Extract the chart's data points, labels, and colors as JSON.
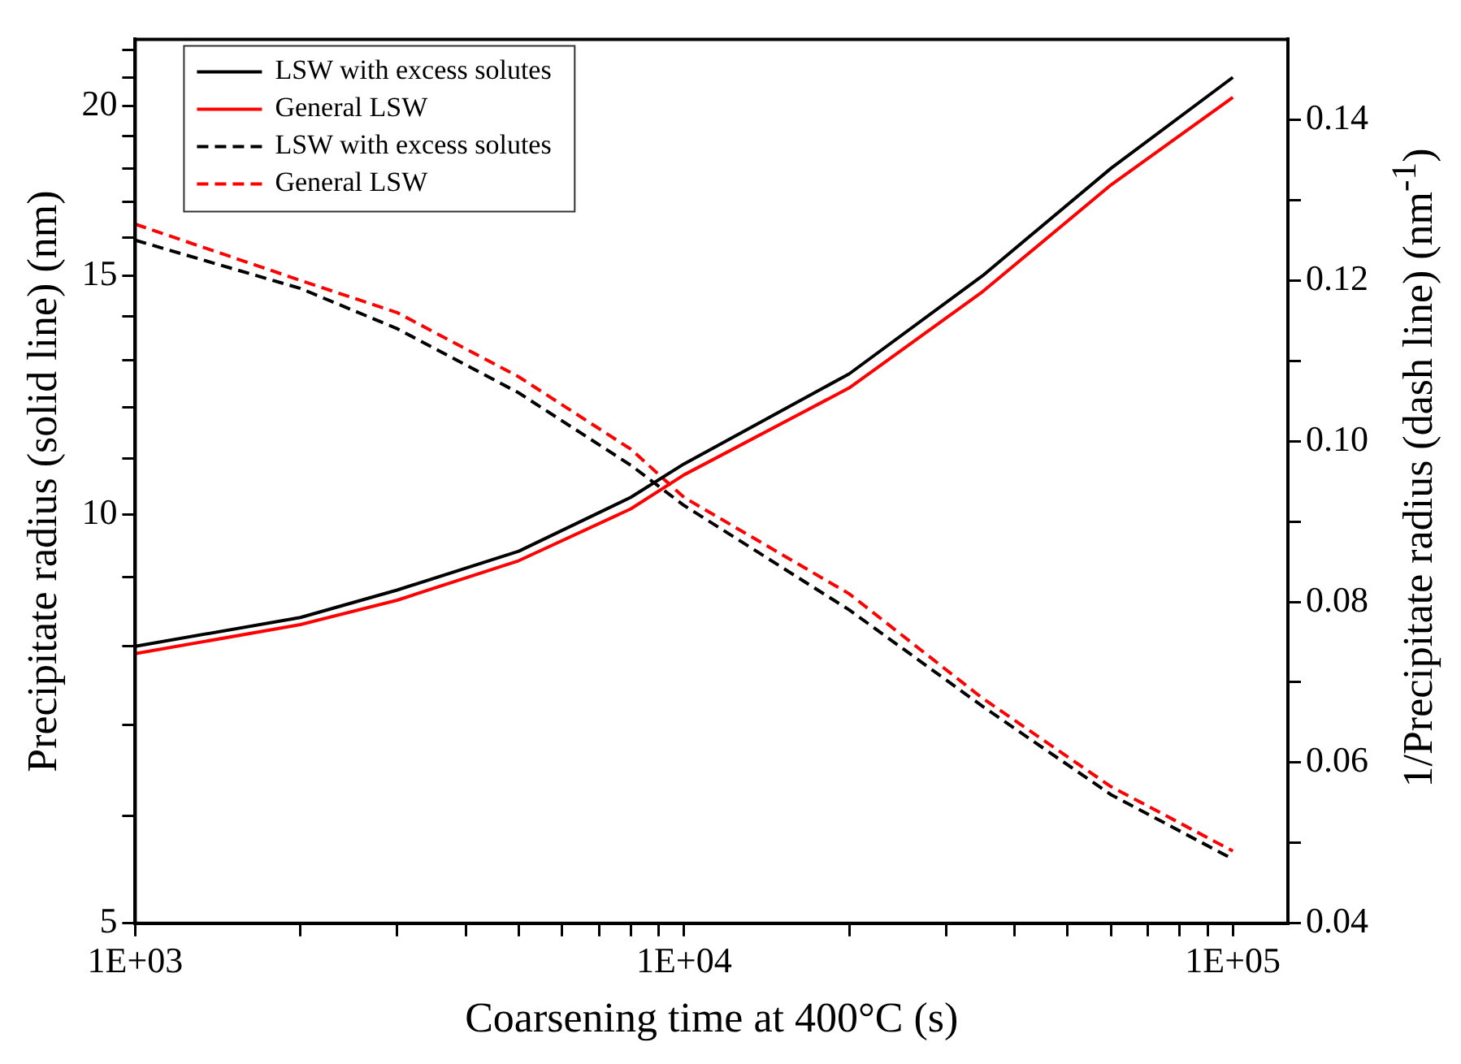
{
  "chart_data": {
    "type": "line",
    "xlabel": "Coarsening time at 400°C (s)",
    "ylabel": "Precipitate radius (solid line) (nm)",
    "y2label": "1/Precipitate radius (dash line) (nm$^{-1}$)",
    "x": [
      1000,
      2000,
      3000,
      5000,
      8000,
      10000,
      20000,
      35000,
      60000,
      100000
    ],
    "series": [
      {
        "name": "LSW with excess solutes",
        "color": "#000000",
        "line_style": "solid",
        "values": [
          8.0,
          8.4,
          8.8,
          9.4,
          10.3,
          10.9,
          12.7,
          15.0,
          18.0,
          21.0
        ]
      },
      {
        "name": "General LSW",
        "color": "#ff0000",
        "line_style": "solid",
        "values": [
          7.9,
          8.3,
          8.65,
          9.25,
          10.1,
          10.7,
          12.4,
          14.6,
          17.5,
          20.3
        ]
      },
      {
        "name": "LSW with excess solutes",
        "color": "#000000",
        "line_style": "dashed",
        "axis": "y2",
        "values": [
          0.125,
          0.119,
          0.114,
          0.106,
          0.097,
          0.092,
          0.079,
          0.067,
          0.056,
          0.048
        ]
      },
      {
        "name": "General LSW",
        "color": "#ff0000",
        "line_style": "dashed",
        "axis": "y2",
        "values": [
          0.127,
          0.12,
          0.116,
          0.108,
          0.099,
          0.093,
          0.081,
          0.068,
          0.057,
          0.049
        ]
      }
    ],
    "xlim": [
      1000,
      126000
    ],
    "ylim": [
      5,
      22.4
    ],
    "y2lim": [
      0.04,
      0.15
    ],
    "xticks": [
      {
        "value": 1000,
        "label": "1E+03"
      },
      {
        "value": 2000,
        "label": null
      },
      {
        "value": 3000,
        "label": null
      },
      {
        "value": 4000,
        "label": null
      },
      {
        "value": 5000,
        "label": null
      },
      {
        "value": 6000,
        "label": null
      },
      {
        "value": 7000,
        "label": null
      },
      {
        "value": 8000,
        "label": null
      },
      {
        "value": 9000,
        "label": null
      },
      {
        "value": 10000,
        "label": "1E+04"
      },
      {
        "value": 20000,
        "label": null
      },
      {
        "value": 30000,
        "label": null
      },
      {
        "value": 40000,
        "label": null
      },
      {
        "value": 50000,
        "label": null
      },
      {
        "value": 60000,
        "label": null
      },
      {
        "value": 70000,
        "label": null
      },
      {
        "value": 80000,
        "label": null
      },
      {
        "value": 90000,
        "label": null
      },
      {
        "value": 100000,
        "label": "1E+05"
      }
    ],
    "yticks": [
      5,
      {
        "value": 6,
        "label": null
      },
      {
        "value": 7,
        "label": null
      },
      {
        "value": 8,
        "label": null
      },
      {
        "value": 9,
        "label": null
      },
      10,
      {
        "value": 11,
        "label": null
      },
      {
        "value": 12,
        "label": null
      },
      {
        "value": 13,
        "label": null
      },
      {
        "value": 14,
        "label": null
      },
      15,
      {
        "value": 16,
        "label": null
      },
      {
        "value": 17,
        "label": null
      },
      {
        "value": 18,
        "label": null
      },
      {
        "value": 19,
        "label": null
      },
      20,
      {
        "value": 21,
        "label": null
      },
      {
        "value": 22,
        "label": null
      }
    ],
    "y2ticks": [
      0.04,
      {
        "value": 0.05,
        "label": null
      },
      0.06,
      {
        "value": 0.07,
        "label": null
      },
      0.08,
      {
        "value": 0.09,
        "label": null
      },
      {
        "value": 0.1,
        "label": "0.10"
      },
      {
        "value": 0.11,
        "label": null
      },
      0.12,
      {
        "value": 0.13,
        "label": null
      },
      0.14
    ],
    "log": "xy",
    "grid": false,
    "legend": "top left",
    "marker": "none"
  }
}
